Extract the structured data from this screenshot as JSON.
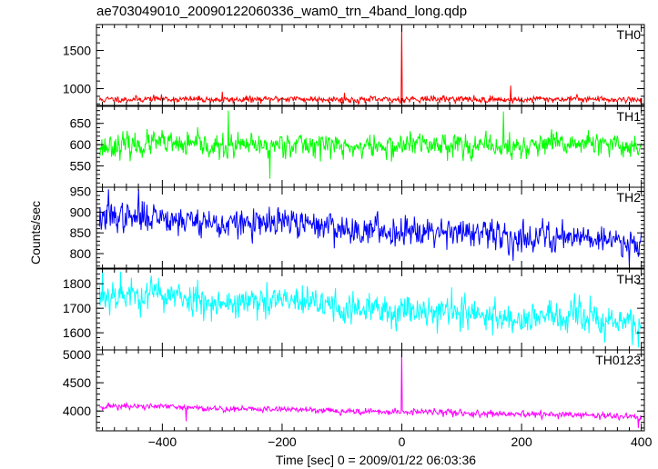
{
  "chart_data": {
    "type": "line",
    "title": "ae703049010_20090122060336_wam0_trn_4band_long.qdp",
    "xlabel": "Time [sec] 0 = 2009/01/22 06:03:36",
    "ylabel": "Counts/sec",
    "xlim": [
      -510,
      405
    ],
    "xticks": [
      -400,
      -200,
      0,
      200,
      400
    ],
    "grid": false,
    "panels": [
      {
        "name": "TH0",
        "color": "#ff0000",
        "ylim": [
          780,
          1840
        ],
        "yticks": [
          1000,
          1500
        ],
        "baseline": 860,
        "noise": 24,
        "noise_trend": 0,
        "spikes": [
          [
            0,
            1840
          ],
          [
            182,
            1040
          ],
          [
            -300,
            960
          ],
          [
            -96,
            945
          ]
        ],
        "seed": 11
      },
      {
        "name": "TH1",
        "color": "#00ff00",
        "ylim": [
          500,
          690
        ],
        "yticks": [
          550,
          600,
          650
        ],
        "baseline": 598,
        "noise": 16,
        "noise_trend": 0,
        "spikes": [
          [
            -290,
            680
          ],
          [
            170,
            678
          ],
          [
            -220,
            520
          ]
        ],
        "seed": 23
      },
      {
        "name": "TH2",
        "color": "#0000ff",
        "ylim": [
          765,
          960
        ],
        "yticks": [
          800,
          850,
          900,
          950
        ],
        "baseline_start": 890,
        "baseline_end": 830,
        "noise": 20,
        "spikes": [
          [
            -490,
            955
          ],
          [
            -440,
            955
          ],
          [
            380,
            770
          ]
        ],
        "seed": 37
      },
      {
        "name": "TH3",
        "color": "#00ffff",
        "ylim": [
          1530,
          1860
        ],
        "yticks": [
          1600,
          1700,
          1800
        ],
        "baseline_start": 1760,
        "baseline_end": 1640,
        "noise": 38,
        "spikes": [
          [
            -500,
            1860
          ],
          [
            -470,
            1850
          ],
          [
            395,
            1540
          ]
        ],
        "seed": 53
      },
      {
        "name": "TH0123",
        "color": "#ff00ff",
        "ylim": [
          3650,
          5080
        ],
        "yticks": [
          4000,
          4500,
          5000
        ],
        "baseline_start": 4090,
        "baseline_end": 3900,
        "noise": 32,
        "spikes": [
          [
            0,
            5080
          ],
          [
            395,
            3700
          ],
          [
            -360,
            3820
          ]
        ],
        "seed": 71
      }
    ]
  }
}
